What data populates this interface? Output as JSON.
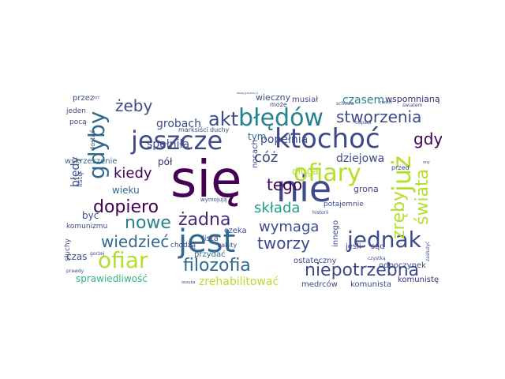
{
  "word_cloud": {
    "palette": [
      "#440154",
      "#482878",
      "#3e4a89",
      "#31688e",
      "#26828e",
      "#1f9e89",
      "#35b779",
      "#6ece58",
      "#b5de2b",
      "#fde725"
    ],
    "words": [
      {
        "text": "się",
        "rank": 1,
        "color": "#440154"
      },
      {
        "text": "nie",
        "rank": 2,
        "color": "#3e4a89"
      },
      {
        "text": "jest",
        "rank": 3,
        "color": "#31688e"
      },
      {
        "text": "ktochoć",
        "rank": 4,
        "color": "#3e4a89"
      },
      {
        "text": "ofiary",
        "rank": 5,
        "color": "#b5de2b"
      },
      {
        "text": "błędów",
        "rank": 6,
        "color": "#26828e"
      },
      {
        "text": "jeszcze",
        "rank": 7,
        "color": "#3e4a89"
      },
      {
        "text": "jednak",
        "rank": 8,
        "color": "#3e4a89"
      },
      {
        "text": "ofiar",
        "rank": 9,
        "color": "#b5de2b"
      },
      {
        "text": "gdyby",
        "rank": 10,
        "color": "#31688e"
      },
      {
        "text": "już",
        "rank": 11,
        "color": "#b5de2b"
      },
      {
        "text": "filozofia",
        "rank": 12,
        "color": "#31688e"
      },
      {
        "text": "niepotrzebna",
        "rank": 13,
        "color": "#3e4a89"
      },
      {
        "text": "dopiero",
        "rank": 14,
        "color": "#440154"
      },
      {
        "text": "nowe",
        "rank": 15,
        "color": "#26828e"
      },
      {
        "text": "akt",
        "rank": 16,
        "color": "#3e4a89"
      },
      {
        "text": "żadna",
        "rank": 17,
        "color": "#482878"
      },
      {
        "text": "stworzenia",
        "rank": 18,
        "color": "#3e4a89"
      },
      {
        "text": "wiedzieć",
        "rank": 19,
        "color": "#31688e"
      },
      {
        "text": "tworzy",
        "rank": 20,
        "color": "#3e4a89"
      },
      {
        "text": "tego",
        "rank": 21,
        "color": "#440154"
      },
      {
        "text": "cóż",
        "rank": 22,
        "color": "#3e4a89"
      },
      {
        "text": "składa",
        "rank": 23,
        "color": "#1f9e89"
      },
      {
        "text": "wymaga",
        "rank": 24,
        "color": "#3e4a89"
      },
      {
        "text": "świata",
        "rank": 25,
        "color": "#b5de2b"
      },
      {
        "text": "zręby",
        "rank": 26,
        "color": "#b5de2b"
      },
      {
        "text": "gdy",
        "rank": 27,
        "color": "#440154"
      },
      {
        "text": "żeby",
        "rank": 28,
        "color": "#3e4a89"
      },
      {
        "text": "kiedy",
        "rank": 29,
        "color": "#440154"
      },
      {
        "text": "popełnia",
        "rank": 30,
        "color": "#3e4a89"
      },
      {
        "text": "zrehabilitować",
        "rank": 31,
        "color": "#b5de2b"
      },
      {
        "text": "sprawiedliwość",
        "rank": 32,
        "color": "#35b779"
      },
      {
        "text": "dziejowa",
        "rank": 33,
        "color": "#3e4a89"
      },
      {
        "text": "grobach",
        "rank": 34,
        "color": "#3e4a89"
      },
      {
        "text": "spełniła",
        "rank": 35,
        "color": "#3e4a89"
      },
      {
        "text": "czasem",
        "rank": 36,
        "color": "#26828e"
      },
      {
        "text": "wieku",
        "rank": 37,
        "color": "#31688e"
      },
      {
        "text": "błędy",
        "rank": 38,
        "color": "#3e4a89"
      },
      {
        "text": "wspomnianą",
        "rank": 39,
        "color": "#482878"
      },
      {
        "text": "pół",
        "rank": 40,
        "color": "#482878"
      },
      {
        "text": "tym",
        "rank": 41,
        "color": "#31688e"
      },
      {
        "text": "długa",
        "rank": 42,
        "color": "#b5de2b"
      },
      {
        "text": "czas",
        "rank": 43,
        "color": "#3e4a89"
      },
      {
        "text": "być",
        "rank": 44,
        "color": "#3e4a89"
      },
      {
        "text": "grona",
        "rank": 45,
        "color": "#3e4a89"
      },
      {
        "text": "odpoczynek",
        "rank": 46,
        "color": "#3e4a89"
      },
      {
        "text": "komunistę",
        "rank": 47,
        "color": "#482878"
      },
      {
        "text": "wieczny",
        "rank": 48,
        "color": "#3e4a89"
      },
      {
        "text": "musiał",
        "rank": 49,
        "color": "#3e4a89"
      },
      {
        "text": "przez",
        "rank": 50,
        "color": "#3e4a89"
      },
      {
        "text": "wskrzeszenie",
        "rank": 51,
        "color": "#31688e"
      },
      {
        "text": "sąd",
        "rank": 52,
        "color": "#3e4a89"
      },
      {
        "text": "jeśli",
        "rank": 53,
        "color": "#3e4a89"
      },
      {
        "text": "przydać",
        "rank": 54,
        "color": "#31688e"
      },
      {
        "text": "czeka",
        "rank": 55,
        "color": "#3e4a89"
      },
      {
        "text": "lista",
        "rank": 56,
        "color": "#3e4a89"
      },
      {
        "text": "ostateczny",
        "rank": 57,
        "color": "#3e4a89"
      },
      {
        "text": "mędrców",
        "rank": 58,
        "color": "#3e4a89"
      },
      {
        "text": "komunista",
        "rank": 59,
        "color": "#3e4a89"
      },
      {
        "text": "nocach",
        "rank": 60,
        "color": "#3e4a89"
      },
      {
        "text": "potajemnie",
        "rank": 61,
        "color": "#3e4a89"
      },
      {
        "text": "innego",
        "rank": 62,
        "color": "#3e4a89"
      },
      {
        "text": "chodzą",
        "rank": 63,
        "color": "#3e4a89"
      },
      {
        "text": "słuchy",
        "rank": 64,
        "color": "#3e4a89"
      },
      {
        "text": "komunizmu",
        "rank": 65,
        "color": "#3e4a89"
      },
      {
        "text": "listę",
        "rank": 66,
        "color": "#3e4a89"
      },
      {
        "text": "jeden",
        "rank": 67,
        "color": "#3e4a89"
      },
      {
        "text": "pocą",
        "rank": 68,
        "color": "#3e4a89"
      },
      {
        "text": "marksiści",
        "rank": 69,
        "color": "#3e4a89"
      },
      {
        "text": "duchy",
        "rank": 70,
        "color": "#3e4a89"
      },
      {
        "text": "schowa",
        "rank": 71,
        "color": "#3e4a89"
      },
      {
        "text": "odpadł",
        "rank": 72,
        "color": "#3e4a89"
      },
      {
        "text": "światem",
        "rank": 73,
        "color": "#3e4a89"
      },
      {
        "text": "zabity",
        "rank": 74,
        "color": "#3e4a89"
      },
      {
        "text": "może",
        "rank": 75,
        "color": "#3e4a89"
      },
      {
        "text": "przed",
        "rank": 76,
        "color": "#3e4a89"
      },
      {
        "text": "dostać",
        "rank": 77,
        "color": "#3e4a89"
      },
      {
        "text": "wymojują",
        "rank": 78,
        "color": "#3e4a89"
      },
      {
        "text": "zasłużyć",
        "rank": 79,
        "color": "#3e4a89"
      },
      {
        "text": "czystką",
        "rank": 80,
        "color": "#3e4a89"
      },
      {
        "text": "historii",
        "rank": 81,
        "color": "#3e4a89"
      },
      {
        "text": "gorzej",
        "rank": 82,
        "color": "#3e4a89"
      },
      {
        "text": "prawdy",
        "rank": 83,
        "color": "#3e4a89"
      },
      {
        "text": "nawet",
        "rank": 84,
        "color": "#3e4a89"
      },
      {
        "text": "wszystkich",
        "rank": 85,
        "color": "#3e4a89"
      },
      {
        "text": "zyć",
        "rank": 86,
        "color": "#3e4a89"
      },
      {
        "text": "sny",
        "rank": 87,
        "color": "#3e4a89"
      },
      {
        "text": "oszuka",
        "rank": 88,
        "color": "#3e4a89"
      }
    ]
  }
}
